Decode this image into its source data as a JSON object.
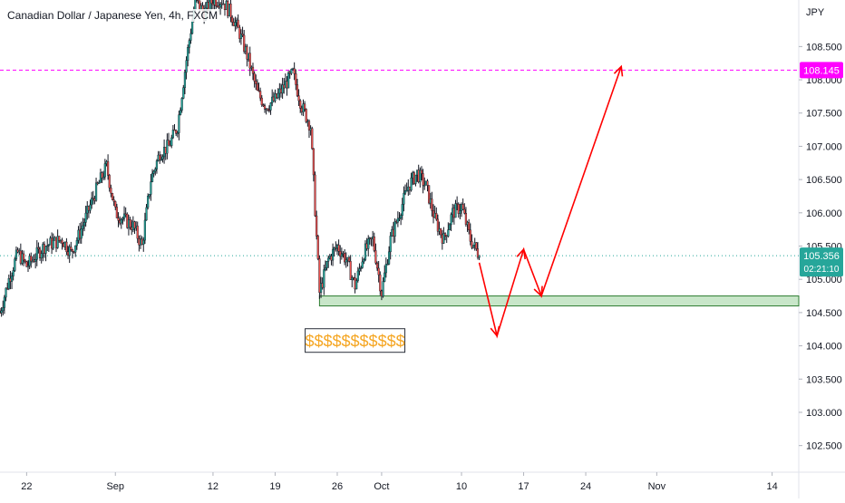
{
  "chart_data": {
    "type": "candlestick",
    "title": "Canadian Dollar / Japanese Yen, 4h, FXCM",
    "currency": "JPY",
    "ylim": [
      102.1,
      109.2
    ],
    "xlim": [
      "2021-08-19",
      "2021-11-17"
    ],
    "y_ticks": [
      "108.500",
      "108.000",
      "107.500",
      "107.000",
      "106.500",
      "106.000",
      "105.500",
      "105.000",
      "104.500",
      "104.000",
      "103.500",
      "103.000",
      "102.500"
    ],
    "y_tick_values": [
      108.5,
      108.0,
      107.5,
      107.0,
      106.5,
      106.0,
      105.5,
      105.0,
      104.5,
      104.0,
      103.5,
      103.0,
      102.5
    ],
    "x_ticks": [
      {
        "label": "22",
        "date": "2021-08-22"
      },
      {
        "label": "Sep",
        "date": "2021-09-01"
      },
      {
        "label": "12",
        "date": "2021-09-12"
      },
      {
        "label": "19",
        "date": "2021-09-19"
      },
      {
        "label": "26",
        "date": "2021-09-26"
      },
      {
        "label": "Oct",
        "date": "2021-10-01"
      },
      {
        "label": "10",
        "date": "2021-10-10"
      },
      {
        "label": "17",
        "date": "2021-10-17"
      },
      {
        "label": "24",
        "date": "2021-10-24"
      },
      {
        "label": "Nov",
        "date": "2021-11-01"
      },
      {
        "label": "14",
        "date": "2021-11-14"
      }
    ],
    "last_price": {
      "label": "105.356",
      "value": 105.356,
      "countdown": "02:21:10",
      "color": "#26a69a"
    },
    "resistance": {
      "label": "108.145",
      "value": 108.145,
      "color": "#ff00ff"
    },
    "support_zone": {
      "from": 104.6,
      "to": 104.75,
      "start": "2021-09-24",
      "fill": "#c8e6c9",
      "stroke": "#2e7d32"
    },
    "annotation": {
      "text": "$$$$$$$$$$$",
      "date": "2021-09-28",
      "value": 104.08,
      "color": "#f5a623"
    },
    "projection": {
      "color": "#ff0000",
      "points": [
        [
          "2021-10-12",
          105.25
        ],
        [
          "2021-10-14",
          104.15
        ],
        [
          "2021-10-17",
          105.45
        ],
        [
          "2021-10-19",
          104.75
        ],
        [
          "2021-10-28",
          108.2
        ]
      ]
    },
    "price_path": [
      [
        "2021-08-19",
        104.5
      ],
      [
        "2021-08-20",
        105.0
      ],
      [
        "2021-08-21",
        105.4
      ],
      [
        "2021-08-22",
        105.2
      ],
      [
        "2021-08-24",
        105.5
      ],
      [
        "2021-08-26",
        105.6
      ],
      [
        "2021-08-27",
        105.4
      ],
      [
        "2021-08-28",
        105.7
      ],
      [
        "2021-08-30",
        106.4
      ],
      [
        "2021-08-31",
        106.7
      ],
      [
        "2021-09-01",
        106.0
      ],
      [
        "2021-09-02",
        105.9
      ],
      [
        "2021-09-03",
        105.8
      ],
      [
        "2021-09-04",
        105.5
      ],
      [
        "2021-09-05",
        106.5
      ],
      [
        "2021-09-06",
        106.9
      ],
      [
        "2021-09-07",
        107.0
      ],
      [
        "2021-09-08",
        107.3
      ],
      [
        "2021-09-09",
        108.3
      ],
      [
        "2021-09-10",
        109.2
      ],
      [
        "2021-09-11",
        109.0
      ],
      [
        "2021-09-12",
        109.2
      ],
      [
        "2021-09-13",
        109.2
      ],
      [
        "2021-09-14",
        109.0
      ],
      [
        "2021-09-15",
        108.7
      ],
      [
        "2021-09-16",
        108.3
      ],
      [
        "2021-09-17",
        107.8
      ],
      [
        "2021-09-18",
        107.6
      ],
      [
        "2021-09-19",
        107.7
      ],
      [
        "2021-09-20",
        107.9
      ],
      [
        "2021-09-21",
        108.1
      ],
      [
        "2021-09-22",
        107.6
      ],
      [
        "2021-09-23",
        107.3
      ],
      [
        "2021-09-24",
        104.8
      ],
      [
        "2021-09-25",
        105.3
      ],
      [
        "2021-09-26",
        105.5
      ],
      [
        "2021-09-27",
        105.3
      ],
      [
        "2021-09-28",
        104.9
      ],
      [
        "2021-09-29",
        105.4
      ],
      [
        "2021-09-30",
        105.6
      ],
      [
        "2021-10-01",
        104.8
      ],
      [
        "2021-10-02",
        105.6
      ],
      [
        "2021-10-03",
        106.0
      ],
      [
        "2021-10-04",
        106.4
      ],
      [
        "2021-10-05",
        106.6
      ],
      [
        "2021-10-06",
        106.4
      ],
      [
        "2021-10-07",
        105.9
      ],
      [
        "2021-10-08",
        105.6
      ],
      [
        "2021-10-09",
        106.0
      ],
      [
        "2021-10-10",
        106.1
      ],
      [
        "2021-10-11",
        105.6
      ],
      [
        "2021-10-12",
        105.36
      ]
    ]
  }
}
